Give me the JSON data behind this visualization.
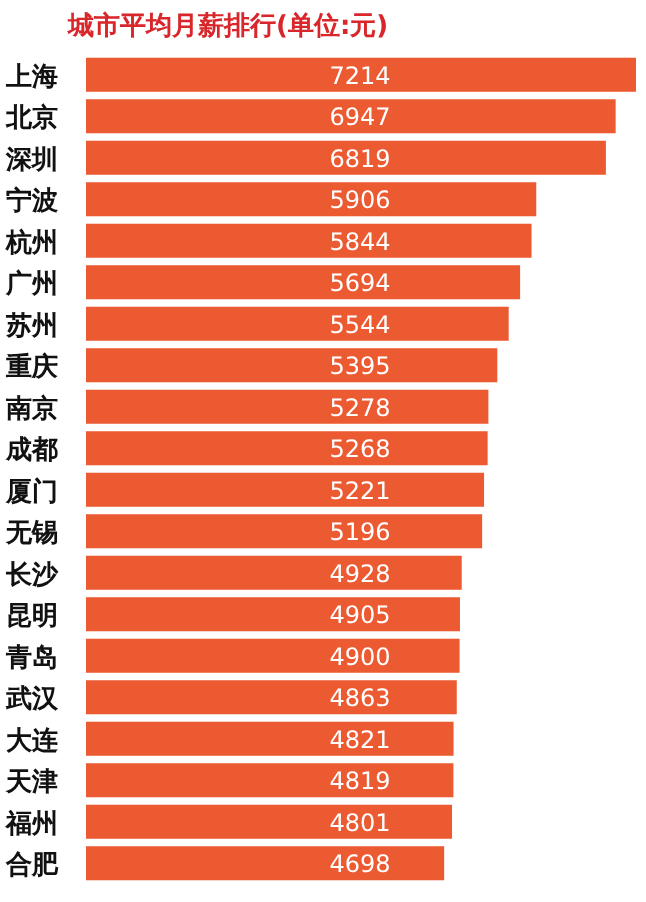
{
  "chart_data": {
    "type": "bar",
    "orientation": "horizontal",
    "title": "城市平均月薪排行(单位:元)",
    "categories": [
      "上海",
      "北京",
      "深圳",
      "宁波",
      "杭州",
      "广州",
      "苏州",
      "重庆",
      "南京",
      "成都",
      "厦门",
      "无锡",
      "长沙",
      "昆明",
      "青岛",
      "武汉",
      "大连",
      "天津",
      "福州",
      "合肥"
    ],
    "values": [
      7214,
      6947,
      6819,
      5906,
      5844,
      5694,
      5544,
      5395,
      5278,
      5268,
      5221,
      5196,
      4928,
      4905,
      4900,
      4863,
      4821,
      4819,
      4801,
      4698
    ],
    "color": "#ec5a32",
    "data_labels": true
  }
}
